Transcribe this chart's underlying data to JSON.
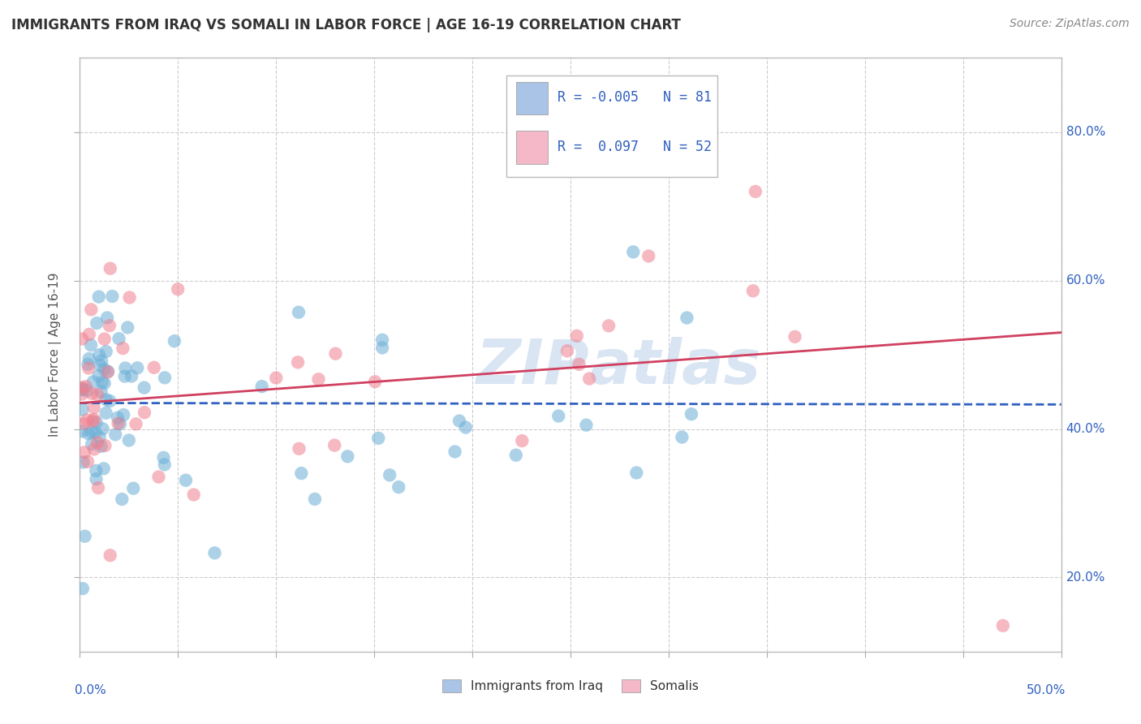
{
  "title": "IMMIGRANTS FROM IRAQ VS SOMALI IN LABOR FORCE | AGE 16-19 CORRELATION CHART",
  "source": "Source: ZipAtlas.com",
  "ylabel": "In Labor Force | Age 16-19",
  "watermark_line1": "ZIP",
  "watermark_line2": "atlas",
  "legend_iraq_R": "-0.005",
  "legend_iraq_N": "81",
  "legend_somali_R": "0.097",
  "legend_somali_N": "52",
  "legend_iraq_color": "#aac4e8",
  "legend_somali_color": "#f4b8c8",
  "iraq_dot_color": "#6baed6",
  "somali_dot_color": "#f08090",
  "iraq_line_color": "#3060c0",
  "somali_line_color": "#d04060",
  "text_color": "#3060c0",
  "title_color": "#333333",
  "ylabel_color": "#555555",
  "grid_color": "#cccccc",
  "background_color": "#ffffff",
  "xlim": [
    0.0,
    0.5
  ],
  "ylim": [
    0.1,
    0.9
  ],
  "yticks": [
    0.2,
    0.4,
    0.6,
    0.8
  ],
  "iraq_line_y0": 0.435,
  "iraq_line_y1": 0.433,
  "somali_line_y0": 0.435,
  "somali_line_y1": 0.53,
  "dot_size": 140,
  "dot_alpha": 0.55,
  "dpi": 100,
  "figwidth": 14.06,
  "figheight": 8.92
}
